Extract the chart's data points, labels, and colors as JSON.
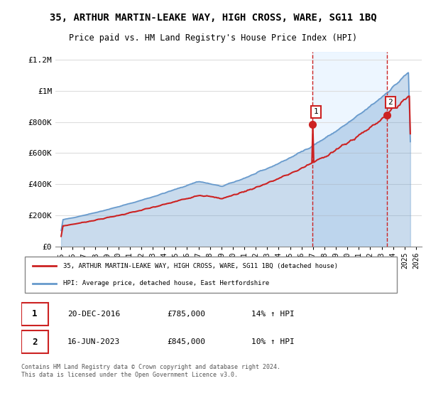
{
  "title": "35, ARTHUR MARTIN-LEAKE WAY, HIGH CROSS, WARE, SG11 1BQ",
  "subtitle": "Price paid vs. HM Land Registry's House Price Index (HPI)",
  "legend_line1": "35, ARTHUR MARTIN-LEAKE WAY, HIGH CROSS, WARE, SG11 1BQ (detached house)",
  "legend_line2": "HPI: Average price, detached house, East Hertfordshire",
  "footer": "Contains HM Land Registry data © Crown copyright and database right 2024.\nThis data is licensed under the Open Government Licence v3.0.",
  "sale1_label": "1",
  "sale1_date": "20-DEC-2016",
  "sale1_price": "£785,000",
  "sale1_hpi": "14% ↑ HPI",
  "sale2_label": "2",
  "sale2_date": "16-JUN-2023",
  "sale2_price": "£845,000",
  "sale2_hpi": "10% ↑ HPI",
  "hpi_color": "#6699cc",
  "price_color": "#cc2222",
  "sale1_x": 2016.97,
  "sale1_y": 785000,
  "sale2_x": 2023.46,
  "sale2_y": 845000,
  "vline1_x": 2016.97,
  "vline2_x": 2023.46,
  "ylim": [
    0,
    1250000
  ],
  "xlim": [
    1994.5,
    2026.5
  ],
  "yticks": [
    0,
    200000,
    400000,
    600000,
    800000,
    1000000,
    1200000
  ],
  "ytick_labels": [
    "£0",
    "£200K",
    "£400K",
    "£600K",
    "£800K",
    "£1M",
    "£1.2M"
  ],
  "xtick_years": [
    1995,
    1996,
    1997,
    1998,
    1999,
    2000,
    2001,
    2002,
    2003,
    2004,
    2005,
    2006,
    2007,
    2008,
    2009,
    2010,
    2011,
    2012,
    2013,
    2014,
    2015,
    2016,
    2017,
    2018,
    2019,
    2020,
    2021,
    2022,
    2023,
    2024,
    2025,
    2026
  ],
  "background_color": "#ffffff",
  "grid_color": "#dddddd",
  "shade_color": "#ddeeff"
}
